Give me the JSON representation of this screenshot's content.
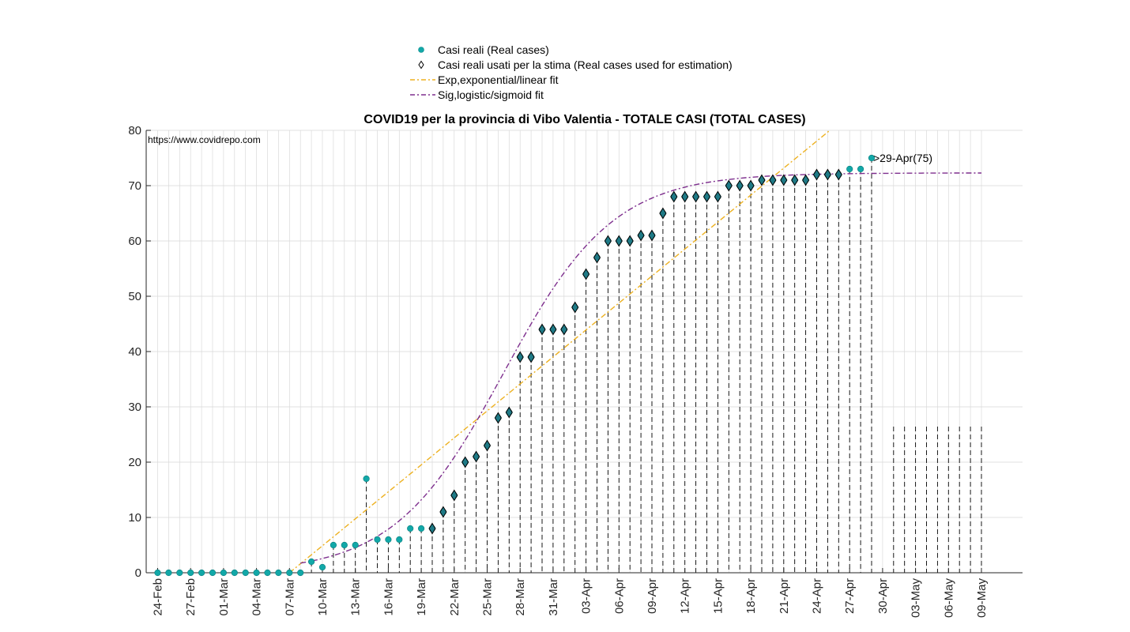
{
  "colors": {
    "real": "#12a8a8",
    "used": "#1f7a86",
    "exp": "#edb120",
    "sig": "#7e2f8e",
    "grid": "#d9d9d9",
    "stem": "#000000"
  },
  "title": "COVID19 per la provincia di Vibo Valentia - TOTALE CASI (TOTAL CASES)",
  "source_note": "https://www.covidrepo.com",
  "legend": [
    {
      "label": "Casi reali (Real cases)",
      "symbol": "dot"
    },
    {
      "label": "Casi reali usati per la stima (Real cases used for estimation)",
      "symbol": "diamond"
    },
    {
      "label": "Exp,exponential/linear fit",
      "symbol": "dashdot-orange"
    },
    {
      "label": "Sig,logistic/sigmoid fit",
      "symbol": "dashdot-purple"
    }
  ],
  "annotation": ">29-Apr(75)",
  "chart_data": {
    "type": "scatter",
    "title": "COVID19 per la provincia di Vibo Valentia - TOTALE CASI (TOTAL CASES)",
    "xlabel": "",
    "ylabel": "",
    "x_start_date": "2020-02-24",
    "x_tick_labels": [
      "24-Feb",
      "27-Feb",
      "01-Mar",
      "04-Mar",
      "07-Mar",
      "10-Mar",
      "13-Mar",
      "16-Mar",
      "19-Mar",
      "22-Mar",
      "25-Mar",
      "28-Mar",
      "31-Mar",
      "03-Apr",
      "06-Apr",
      "09-Apr",
      "12-Apr",
      "15-Apr",
      "18-Apr",
      "21-Apr",
      "24-Apr",
      "27-Apr",
      "30-Apr",
      "03-May",
      "06-May",
      "09-May"
    ],
    "ylim": [
      0,
      80
    ],
    "y_ticks": [
      0,
      10,
      20,
      30,
      40,
      50,
      60,
      70,
      80
    ],
    "grid": true,
    "legend_position": "top-center",
    "series": [
      {
        "name": "Casi reali (Real cases)",
        "x": [
          0,
          1,
          2,
          3,
          4,
          5,
          6,
          7,
          8,
          9,
          10,
          11,
          12,
          13,
          14,
          15,
          16,
          17,
          18,
          19,
          20,
          21,
          22,
          23,
          24,
          25,
          26,
          27,
          28,
          29,
          30,
          31,
          32,
          33,
          34,
          35,
          36,
          37,
          38,
          39,
          40,
          41,
          42,
          43,
          44,
          45,
          46,
          47,
          48,
          49,
          50,
          51,
          52,
          53,
          54,
          55,
          56,
          57,
          58,
          59,
          60,
          61,
          62,
          63,
          64,
          65
        ],
        "y": [
          0,
          0,
          0,
          0,
          0,
          0,
          0,
          0,
          0,
          0,
          0,
          0,
          0,
          0,
          2,
          1,
          5,
          5,
          5,
          17,
          6,
          6,
          6,
          8,
          8,
          8,
          11,
          14,
          20,
          21,
          23,
          28,
          29,
          39,
          39,
          44,
          44,
          44,
          48,
          54,
          57,
          60,
          60,
          60,
          61,
          61,
          65,
          68,
          68,
          68,
          68,
          68,
          70,
          70,
          70,
          71,
          71,
          71,
          71,
          71,
          72,
          72,
          72,
          73,
          73,
          75
        ]
      },
      {
        "name": "Casi reali usati per la stima (Real cases used for estimation)",
        "x": [
          25,
          26,
          27,
          28,
          29,
          30,
          31,
          32,
          33,
          34,
          35,
          36,
          37,
          38,
          39,
          40,
          41,
          42,
          43,
          44,
          45,
          46,
          47,
          48,
          49,
          50,
          51,
          52,
          53,
          54,
          55,
          56,
          57,
          58,
          59,
          60,
          61,
          62
        ],
        "y": [
          8,
          11,
          14,
          20,
          21,
          23,
          28,
          29,
          39,
          39,
          44,
          44,
          44,
          48,
          54,
          57,
          60,
          60,
          60,
          61,
          61,
          65,
          68,
          68,
          68,
          68,
          68,
          70,
          70,
          70,
          71,
          71,
          71,
          71,
          71,
          72,
          72,
          72
        ]
      },
      {
        "name": "Exp,exponential/linear fit",
        "x": [
          12,
          61.5
        ],
        "y": [
          0,
          82.5
        ]
      },
      {
        "name": "Sig,logistic/sigmoid fit",
        "model": "logistic",
        "K": 72.3,
        "r": 0.2,
        "x0": 31.5,
        "x_range": [
          13,
          75
        ]
      }
    ]
  }
}
